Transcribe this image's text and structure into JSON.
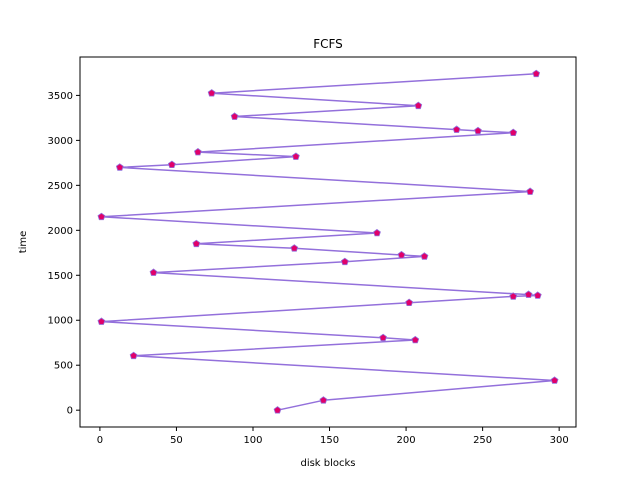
{
  "chart_data": {
    "type": "line",
    "title": "FCFS",
    "xlabel": "disk blocks",
    "ylabel": "time",
    "xlim": [
      -13,
      311
    ],
    "ylim": [
      -187,
      3927
    ],
    "xticks": [
      0,
      50,
      100,
      150,
      200,
      250,
      300
    ],
    "yticks": [
      0,
      500,
      1000,
      1500,
      2000,
      2500,
      3000,
      3500
    ],
    "grid": false,
    "line_color": "#9370db",
    "marker": "pentagon",
    "marker_face_color": "#e0006a",
    "marker_edge_color": "#9370db",
    "series": [
      {
        "x": [
          116,
          146,
          297,
          22,
          206,
          185,
          1,
          202,
          270,
          286,
          280,
          35,
          160,
          212,
          197,
          127,
          63,
          181,
          1,
          281,
          13,
          47,
          128,
          64,
          270,
          247,
          233,
          88,
          208,
          73,
          285
        ],
        "y": [
          0,
          110,
          330,
          605,
          780,
          805,
          985,
          1195,
          1265,
          1275,
          1285,
          1530,
          1650,
          1710,
          1725,
          1800,
          1850,
          1970,
          2150,
          2430,
          2700,
          2730,
          2820,
          2870,
          3085,
          3105,
          3120,
          3265,
          3385,
          3525,
          3740
        ]
      }
    ]
  }
}
